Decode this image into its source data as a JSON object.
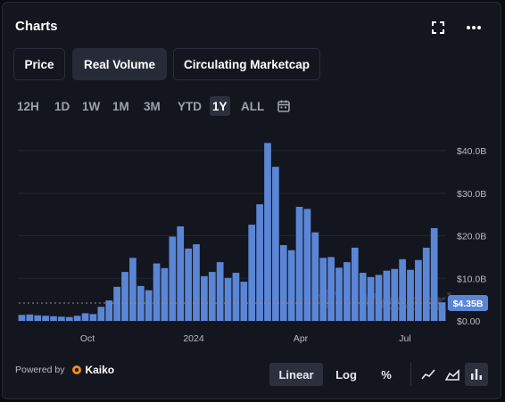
{
  "header": {
    "title": "Charts"
  },
  "metric_tabs": [
    {
      "label": "Price",
      "active": false
    },
    {
      "label": "Real Volume",
      "active": true
    },
    {
      "label": "Circulating Marketcap",
      "active": false
    }
  ],
  "time_ranges": [
    {
      "label": "12H",
      "active": false
    },
    {
      "label": "1D",
      "active": false
    },
    {
      "label": "1W",
      "active": false
    },
    {
      "label": "1M",
      "active": false
    },
    {
      "label": "3M",
      "active": false
    },
    {
      "label": "YTD",
      "active": false
    },
    {
      "label": "1Y",
      "active": true
    },
    {
      "label": "ALL",
      "active": false
    }
  ],
  "footer": {
    "powered_by": "Powered by",
    "provider": "Kaiko"
  },
  "scale_options": [
    {
      "label": "Linear",
      "active": true
    },
    {
      "label": "Log",
      "active": false
    },
    {
      "label": "%",
      "active": false
    }
  ],
  "chart_type_icons": [
    {
      "name": "line-chart-icon",
      "active": false
    },
    {
      "name": "area-chart-icon",
      "active": false
    },
    {
      "name": "bar-chart-icon",
      "active": true
    }
  ],
  "colors": {
    "bar": "#5b86d6",
    "bar_stroke": "#3f68b8",
    "last_price_badge": "#5b86d6",
    "grid": "#22252f",
    "axis_text": "#b8bcc8",
    "watermark": "#4b5370"
  },
  "chart_data": {
    "type": "bar",
    "title": "",
    "xlabel": "",
    "ylabel": "",
    "ylim": [
      0,
      40
    ],
    "y_unit": "B",
    "y_ticks": [
      "$0.00",
      "$10.0B",
      "$20.0B",
      "$30.0B",
      "$40.0B"
    ],
    "x_ticks": [
      "Oct",
      "2024",
      "Apr",
      "Jul"
    ],
    "grid": true,
    "watermark": "Messari",
    "last_value_label": "$4.35B",
    "last_value": 4.35,
    "values": [
      1.4,
      1.5,
      1.3,
      1.2,
      1.1,
      1.0,
      0.9,
      1.2,
      1.8,
      1.6,
      3.3,
      4.8,
      8.0,
      11.5,
      14.8,
      8.2,
      7.2,
      13.5,
      12.4,
      19.8,
      22.2,
      17.0,
      18.0,
      10.5,
      11.5,
      13.8,
      10.1,
      11.3,
      9.2,
      22.6,
      27.4,
      41.8,
      36.2,
      17.8,
      16.6,
      26.8,
      26.3,
      20.8,
      14.8,
      15.0,
      12.5,
      13.8,
      17.2,
      11.3,
      10.3,
      10.8,
      11.8,
      12.2,
      14.5,
      12.0,
      14.3,
      17.2,
      21.8,
      4.35
    ]
  }
}
